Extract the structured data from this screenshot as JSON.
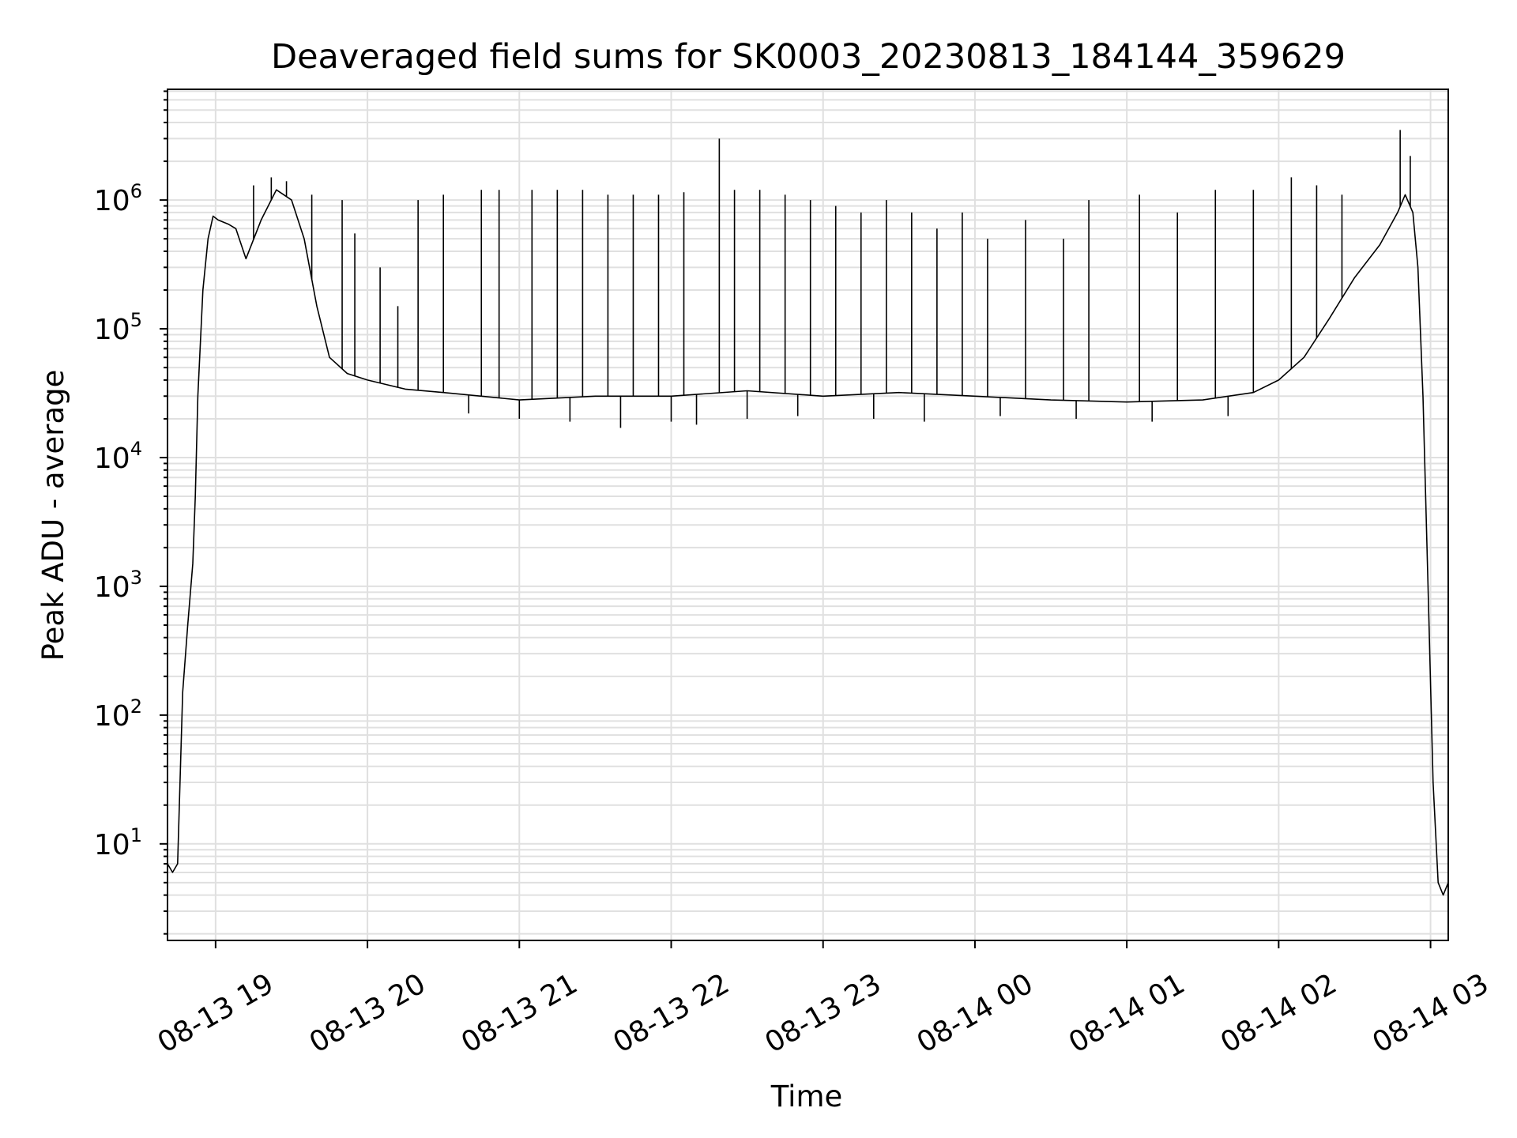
{
  "chart_data": {
    "type": "line",
    "title": "Deaveraged field sums for SK0003_20230813_184144_359629",
    "xlabel": "Time",
    "ylabel": "Peak ADU - average",
    "yscale": "log",
    "grid": true,
    "line_color": "#000000",
    "grid_color": "#e0e0e0",
    "xlim": [
      "2023-08-13 18:41",
      "2023-08-14 03:07"
    ],
    "ylim_log10": [
      0.25,
      6.86
    ],
    "x_ticks": [
      {
        "t": "2023-08-13 19:00",
        "label": "08-13 19"
      },
      {
        "t": "2023-08-13 20:00",
        "label": "08-13 20"
      },
      {
        "t": "2023-08-13 21:00",
        "label": "08-13 21"
      },
      {
        "t": "2023-08-13 22:00",
        "label": "08-13 22"
      },
      {
        "t": "2023-08-13 23:00",
        "label": "08-13 23"
      },
      {
        "t": "2023-08-14 00:00",
        "label": "08-14 00"
      },
      {
        "t": "2023-08-14 01:00",
        "label": "08-14 01"
      },
      {
        "t": "2023-08-14 02:00",
        "label": "08-14 02"
      },
      {
        "t": "2023-08-14 03:00",
        "label": "08-14 03"
      }
    ],
    "y_ticks": [
      {
        "value": 10,
        "base": "10",
        "exp": "1"
      },
      {
        "value": 100,
        "base": "10",
        "exp": "2"
      },
      {
        "value": 1000,
        "base": "10",
        "exp": "3"
      },
      {
        "value": 10000,
        "base": "10",
        "exp": "4"
      },
      {
        "value": 100000,
        "base": "10",
        "exp": "5"
      },
      {
        "value": 1000000,
        "base": "10",
        "exp": "6"
      }
    ],
    "series": [
      {
        "points": [
          [
            "2023-08-13 18:41",
            7
          ],
          [
            "2023-08-13 18:43",
            6
          ],
          [
            "2023-08-13 18:45",
            7
          ],
          [
            "2023-08-13 18:47",
            150
          ],
          [
            "2023-08-13 18:49",
            500
          ],
          [
            "2023-08-13 18:51",
            1500
          ],
          [
            "2023-08-13 18:52",
            5000
          ],
          [
            "2023-08-13 18:53",
            30000
          ],
          [
            "2023-08-13 18:55",
            200000
          ],
          [
            "2023-08-13 18:57",
            500000
          ],
          [
            "2023-08-13 18:59",
            750000
          ],
          [
            "2023-08-13 19:01",
            700000
          ],
          [
            "2023-08-13 19:05",
            650000
          ],
          [
            "2023-08-13 19:08",
            600000
          ],
          [
            "2023-08-13 19:12",
            350000
          ],
          [
            "2023-08-13 19:18",
            700000
          ],
          [
            "2023-08-13 19:24",
            1200000
          ],
          [
            "2023-08-13 19:30",
            1000000
          ],
          [
            "2023-08-13 19:35",
            500000
          ],
          [
            "2023-08-13 19:40",
            150000
          ],
          [
            "2023-08-13 19:45",
            60000
          ],
          [
            "2023-08-13 19:52",
            45000
          ],
          [
            "2023-08-13 20:00",
            40000
          ],
          [
            "2023-08-13 20:15",
            34000
          ],
          [
            "2023-08-13 20:30",
            32000
          ],
          [
            "2023-08-13 20:45",
            30000
          ],
          [
            "2023-08-13 21:00",
            28000
          ],
          [
            "2023-08-13 21:30",
            30000
          ],
          [
            "2023-08-13 22:00",
            30000
          ],
          [
            "2023-08-13 22:30",
            33000
          ],
          [
            "2023-08-13 23:00",
            30000
          ],
          [
            "2023-08-13 23:30",
            32000
          ],
          [
            "2023-08-14 00:00",
            30000
          ],
          [
            "2023-08-14 00:30",
            28000
          ],
          [
            "2023-08-14 01:00",
            27000
          ],
          [
            "2023-08-14 01:30",
            28000
          ],
          [
            "2023-08-14 01:50",
            32000
          ],
          [
            "2023-08-14 02:00",
            40000
          ],
          [
            "2023-08-14 02:10",
            60000
          ],
          [
            "2023-08-14 02:20",
            120000
          ],
          [
            "2023-08-14 02:30",
            250000
          ],
          [
            "2023-08-14 02:40",
            450000
          ],
          [
            "2023-08-14 02:47",
            800000
          ],
          [
            "2023-08-14 02:50",
            1100000
          ],
          [
            "2023-08-14 02:53",
            800000
          ],
          [
            "2023-08-14 02:55",
            300000
          ],
          [
            "2023-08-14 02:57",
            30000
          ],
          [
            "2023-08-14 02:59",
            1000
          ],
          [
            "2023-08-14 03:01",
            30
          ],
          [
            "2023-08-14 03:03",
            5
          ],
          [
            "2023-08-14 03:05",
            4
          ],
          [
            "2023-08-14 03:07",
            5
          ]
        ],
        "spikes": [
          [
            "2023-08-13 19:15",
            1300000
          ],
          [
            "2023-08-13 19:22",
            1500000
          ],
          [
            "2023-08-13 19:28",
            1400000
          ],
          [
            "2023-08-13 19:38",
            1100000
          ],
          [
            "2023-08-13 19:50",
            1000000
          ],
          [
            "2023-08-13 19:55",
            550000
          ],
          [
            "2023-08-13 20:05",
            300000
          ],
          [
            "2023-08-13 20:12",
            150000
          ],
          [
            "2023-08-13 20:20",
            1000000
          ],
          [
            "2023-08-13 20:30",
            1100000
          ],
          [
            "2023-08-13 20:45",
            1200000
          ],
          [
            "2023-08-13 20:52",
            1200000
          ],
          [
            "2023-08-13 21:05",
            1200000
          ],
          [
            "2023-08-13 21:15",
            1200000
          ],
          [
            "2023-08-13 21:25",
            1200000
          ],
          [
            "2023-08-13 21:35",
            1100000
          ],
          [
            "2023-08-13 21:45",
            1100000
          ],
          [
            "2023-08-13 21:55",
            1100000
          ],
          [
            "2023-08-13 22:05",
            1150000
          ],
          [
            "2023-08-13 22:19",
            3000000
          ],
          [
            "2023-08-13 22:25",
            1200000
          ],
          [
            "2023-08-13 22:35",
            1200000
          ],
          [
            "2023-08-13 22:45",
            1100000
          ],
          [
            "2023-08-13 22:55",
            1000000
          ],
          [
            "2023-08-13 23:05",
            900000
          ],
          [
            "2023-08-13 23:15",
            800000
          ],
          [
            "2023-08-13 23:25",
            1000000
          ],
          [
            "2023-08-13 23:35",
            800000
          ],
          [
            "2023-08-13 23:45",
            600000
          ],
          [
            "2023-08-13 23:55",
            800000
          ],
          [
            "2023-08-14 00:05",
            500000
          ],
          [
            "2023-08-14 00:20",
            700000
          ],
          [
            "2023-08-14 00:35",
            500000
          ],
          [
            "2023-08-14 00:45",
            1000000
          ],
          [
            "2023-08-14 01:05",
            1100000
          ],
          [
            "2023-08-14 01:20",
            800000
          ],
          [
            "2023-08-14 01:35",
            1200000
          ],
          [
            "2023-08-14 01:50",
            1200000
          ],
          [
            "2023-08-14 02:05",
            1500000
          ],
          [
            "2023-08-14 02:15",
            1300000
          ],
          [
            "2023-08-14 02:25",
            1100000
          ],
          [
            "2023-08-14 02:48",
            3500000
          ],
          [
            "2023-08-14 02:52",
            2200000
          ]
        ],
        "dips": [
          [
            "2023-08-13 20:40",
            22000
          ],
          [
            "2023-08-13 21:00",
            20000
          ],
          [
            "2023-08-13 21:20",
            19000
          ],
          [
            "2023-08-13 21:40",
            17000
          ],
          [
            "2023-08-13 22:00",
            19000
          ],
          [
            "2023-08-13 22:10",
            18000
          ],
          [
            "2023-08-13 22:30",
            20000
          ],
          [
            "2023-08-13 22:50",
            21000
          ],
          [
            "2023-08-13 23:20",
            20000
          ],
          [
            "2023-08-13 23:40",
            19000
          ],
          [
            "2023-08-14 00:10",
            21000
          ],
          [
            "2023-08-14 00:40",
            20000
          ],
          [
            "2023-08-14 01:10",
            19000
          ],
          [
            "2023-08-14 01:40",
            21000
          ]
        ]
      }
    ]
  }
}
